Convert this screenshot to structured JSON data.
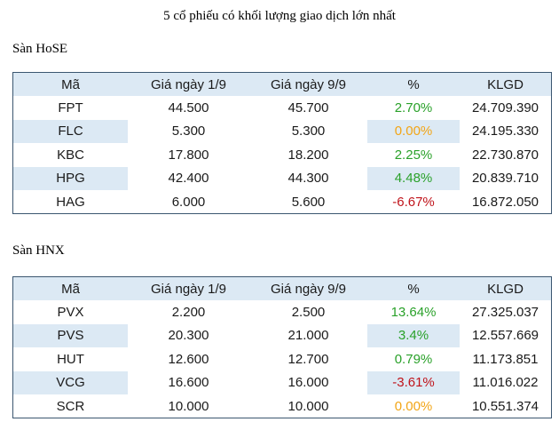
{
  "title": "5 cổ phiếu có khối lượng giao dịch lớn nhất",
  "sections": [
    {
      "label": "Sàn HoSE",
      "table": {
        "header": [
          "Mã",
          "Giá ngày 1/9",
          "Giá ngày 9/9",
          "%",
          "KLGD"
        ],
        "rows": [
          [
            "FPT",
            "44.500",
            "45.700",
            "2.70%",
            "24.709.390"
          ],
          [
            "FLC",
            "5.300",
            "5.300",
            "0.00%",
            "24.195.330"
          ],
          [
            "KBC",
            "17.800",
            "18.200",
            "2.25%",
            "22.730.870"
          ],
          [
            "HPG",
            "42.400",
            "44.300",
            "4.48%",
            "20.839.710"
          ],
          [
            "HAG",
            "6.000",
            "5.600",
            "-6.67%",
            "16.872.050"
          ]
        ]
      }
    },
    {
      "label": "Sàn HNX",
      "table": {
        "header": [
          "Mã",
          "Giá ngày 1/9",
          "Giá ngày 9/9",
          "%",
          "KLGD"
        ],
        "rows": [
          [
            "PVX",
            "2.200",
            "2.500",
            "13.64%",
            "27.325.037"
          ],
          [
            "PVS",
            "20.300",
            "21.000",
            "3.4%",
            "12.557.669"
          ],
          [
            "HUT",
            "12.600",
            "12.700",
            "0.79%",
            "11.173.851"
          ],
          [
            "VCG",
            "16.600",
            "16.000",
            "-3.61%",
            "11.016.022"
          ],
          [
            "SCR",
            "10.000",
            "10.000",
            "0.00%",
            "10.551.374"
          ]
        ]
      }
    }
  ]
}
